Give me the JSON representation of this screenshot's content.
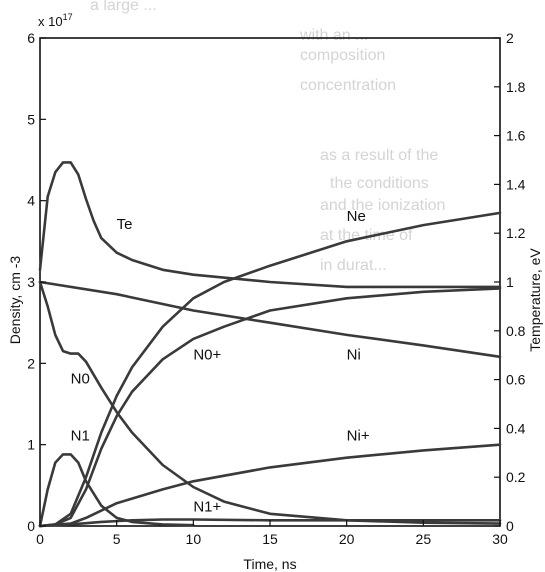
{
  "background_text": [
    "a large ...",
    "with an ...",
    "composition",
    "concentration",
    "as a result of the",
    "the conditions",
    "and the ionization",
    "at the time of",
    "in durat..."
  ],
  "chart_data": {
    "type": "line",
    "xlabel": "Time, ns",
    "ylabel_left": "Density, cm -3",
    "ylabel_right": "Temperature, eV",
    "y_multiplier": "x 10",
    "y_multiplier_exp": "17",
    "xlim": [
      0,
      30
    ],
    "ylim_left": [
      0,
      6
    ],
    "ylim_right": [
      0,
      2
    ],
    "x_ticks": [
      0,
      5,
      10,
      15,
      20,
      25,
      30
    ],
    "y_ticks_left": [
      0,
      1,
      2,
      3,
      4,
      5,
      6
    ],
    "y_ticks_right": [
      0,
      0.2,
      0.4,
      0.6,
      0.8,
      1,
      1.2,
      1.4,
      1.6,
      1.8,
      2
    ],
    "series_color": "#3a3a3a",
    "series": [
      {
        "name": "Te",
        "axis": "right",
        "label": "Te",
        "x": [
          0,
          0.5,
          1,
          1.5,
          2,
          2.5,
          3,
          3.5,
          4,
          5,
          6,
          8,
          10,
          15,
          20,
          25,
          30
        ],
        "y": [
          1.05,
          1.35,
          1.45,
          1.49,
          1.49,
          1.44,
          1.34,
          1.25,
          1.18,
          1.12,
          1.09,
          1.05,
          1.03,
          1.0,
          0.98,
          0.98,
          0.98
        ]
      },
      {
        "name": "Ne",
        "label": "Ne",
        "x": [
          0,
          1,
          2,
          3,
          4,
          5,
          6,
          8,
          10,
          12,
          15,
          20,
          25,
          30
        ],
        "y": [
          0,
          0.02,
          0.15,
          0.6,
          1.15,
          1.6,
          1.95,
          2.45,
          2.8,
          3.0,
          3.2,
          3.5,
          3.7,
          3.85
        ]
      },
      {
        "name": "N0+",
        "label": "N0+",
        "x": [
          0,
          1,
          2,
          3,
          4,
          5,
          6,
          8,
          10,
          12,
          15,
          20,
          25,
          30
        ],
        "y": [
          0,
          0.02,
          0.1,
          0.45,
          0.95,
          1.35,
          1.65,
          2.05,
          2.3,
          2.45,
          2.65,
          2.8,
          2.88,
          2.92
        ]
      },
      {
        "name": "Ni",
        "label": "Ni",
        "x": [
          0,
          5,
          10,
          15,
          20,
          25,
          30
        ],
        "y": [
          3.0,
          2.85,
          2.65,
          2.5,
          2.35,
          2.22,
          2.08
        ]
      },
      {
        "name": "N0",
        "label": "N0",
        "x": [
          0,
          0.5,
          1,
          1.5,
          2,
          2.5,
          3,
          4,
          5,
          6,
          8,
          10,
          12,
          15,
          20,
          25,
          30
        ],
        "y": [
          3.0,
          2.7,
          2.35,
          2.15,
          2.12,
          2.12,
          2.02,
          1.7,
          1.4,
          1.15,
          0.75,
          0.48,
          0.3,
          0.15,
          0.07,
          0.04,
          0.03
        ]
      },
      {
        "name": "Ni+",
        "label": "Ni+",
        "x": [
          0,
          2,
          3,
          5,
          8,
          10,
          15,
          20,
          25,
          30
        ],
        "y": [
          0,
          0.03,
          0.1,
          0.28,
          0.45,
          0.55,
          0.72,
          0.84,
          0.93,
          1.0
        ]
      },
      {
        "name": "N1",
        "label": "N1",
        "x": [
          0,
          0.5,
          1,
          1.5,
          2,
          2.5,
          3,
          4,
          5,
          6,
          8,
          10
        ],
        "y": [
          0,
          0.45,
          0.78,
          0.88,
          0.88,
          0.78,
          0.55,
          0.25,
          0.1,
          0.05,
          0.02,
          0.01
        ]
      },
      {
        "name": "N1+",
        "label": "N1+",
        "x": [
          0,
          2,
          4,
          6,
          8,
          10,
          15,
          20,
          25,
          30
        ],
        "y": [
          0,
          0.02,
          0.05,
          0.07,
          0.08,
          0.08,
          0.07,
          0.07,
          0.07,
          0.07
        ]
      }
    ],
    "label_positions_data": {
      "Te": [
        5.0,
        3.65
      ],
      "Ne": [
        20.0,
        3.75
      ],
      "N0+": [
        10.0,
        2.05
      ],
      "Ni": [
        20.0,
        2.05
      ],
      "N0": [
        2.0,
        1.75
      ],
      "Ni+": [
        20.0,
        1.05
      ],
      "N1": [
        2.0,
        1.05
      ],
      "N1+": [
        10.0,
        0.18
      ]
    }
  }
}
